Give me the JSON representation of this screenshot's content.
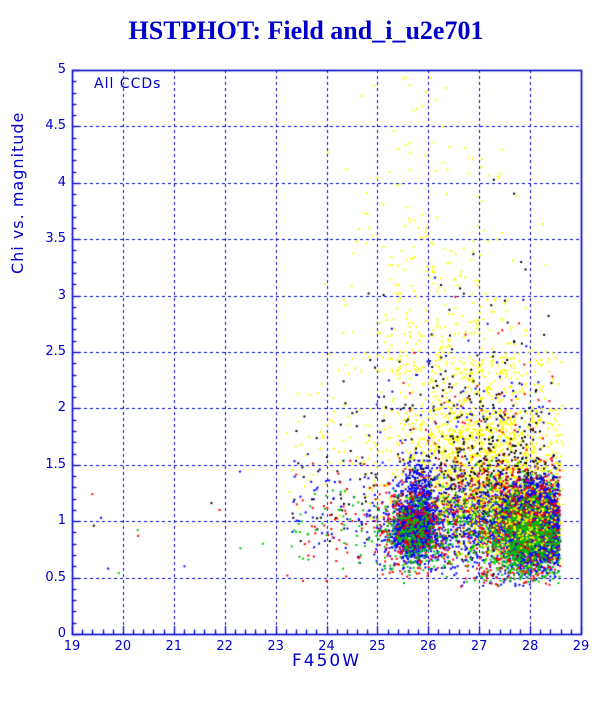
{
  "header": {
    "title": "HSTPHOT: Field and_i_u2e701"
  },
  "colors": {
    "chrome": "#0000cc",
    "background": "#ffffff"
  },
  "chart_data": {
    "type": "scatter",
    "title": "HSTPHOT: Field and_i_u2e701",
    "annotation": "All CCDs",
    "xlabel": "F450W",
    "ylabel": "Chi vs. magnitude",
    "xlim": [
      19,
      29
    ],
    "ylim": [
      0,
      5
    ],
    "x_tick_values": [
      19,
      20,
      21,
      22,
      23,
      24,
      25,
      26,
      27,
      28,
      29
    ],
    "x_tick_labels": [
      "19",
      "20",
      "21",
      "22",
      "23",
      "24",
      "25",
      "26",
      "27",
      "28",
      "29"
    ],
    "y_tick_values": [
      0,
      0.5,
      1,
      1.5,
      2,
      2.5,
      3,
      3.5,
      4,
      4.5,
      5
    ],
    "y_tick_labels": [
      "0",
      "0.5",
      "1",
      "1.5",
      "2",
      "2.5",
      "3",
      "3.5",
      "4",
      "4.5",
      "5"
    ],
    "x_minor_step": 0.2,
    "y_minor_step": 0.1,
    "grid": {
      "style": "dashed",
      "x_every": 1,
      "y_every": 0.5,
      "color": "#0000cc"
    },
    "frame_color": "#0000cc",
    "legend": "none",
    "point_size": 2,
    "seed": 42,
    "point_colors": {
      "blue": "#0000ff",
      "green": "#00c800",
      "red": "#ff0000",
      "yellow": "#ffff00",
      "black": "#000000"
    },
    "clusters": [
      {
        "name": "yellow-band-gauss",
        "color": "yellow",
        "n": 1400,
        "x": {
          "type": "gauss",
          "mu": 27.05,
          "sigma": 0.95,
          "min": 23.2,
          "max": 28.65
        },
        "y": {
          "type": "gauss",
          "mu": 1.5,
          "sigma": 0.42,
          "min": 0.95,
          "max": 2.6
        }
      },
      {
        "name": "yellow-band-uniform",
        "color": "yellow",
        "n": 160,
        "x": {
          "type": "uniform",
          "min": 23.2,
          "max": 28.65
        },
        "y": {
          "type": "gauss",
          "mu": 1.7,
          "sigma": 0.45,
          "min": 1.0,
          "max": 2.9
        }
      },
      {
        "name": "yellow-mid-plume",
        "color": "yellow",
        "n": 230,
        "x": {
          "type": "gauss",
          "mu": 26.4,
          "sigma": 0.95,
          "min": 23.5,
          "max": 28.6
        },
        "y": {
          "type": "expdecay",
          "min": 2.3,
          "scale": 0.45,
          "max": 3.6
        }
      },
      {
        "name": "yellow-upper-plume",
        "color": "yellow",
        "n": 80,
        "x": {
          "type": "gauss",
          "mu": 25.95,
          "sigma": 0.8,
          "min": 23.8,
          "max": 28.4
        },
        "y": {
          "type": "uniform",
          "min": 3.0,
          "max": 4.45
        }
      },
      {
        "name": "yellow-top",
        "color": "yellow",
        "n": 10,
        "x": {
          "type": "gauss",
          "mu": 25.7,
          "sigma": 0.55,
          "min": 24.4,
          "max": 27.0
        },
        "y": {
          "type": "uniform",
          "min": 4.45,
          "max": 4.95
        }
      },
      {
        "name": "black-band-gauss",
        "color": "black",
        "n": 420,
        "x": {
          "type": "gauss",
          "mu": 27.35,
          "sigma": 0.85,
          "min": 24.0,
          "max": 28.6
        },
        "y": {
          "type": "gauss",
          "mu": 1.25,
          "sigma": 0.33,
          "min": 0.6,
          "max": 2.3
        }
      },
      {
        "name": "black-band-uniform",
        "color": "black",
        "n": 130,
        "x": {
          "type": "uniform",
          "min": 23.3,
          "max": 28.6
        },
        "y": {
          "type": "gauss",
          "mu": 1.3,
          "sigma": 0.35,
          "min": 0.65,
          "max": 2.2
        }
      },
      {
        "name": "black-upper",
        "color": "black",
        "n": 90,
        "x": {
          "type": "gauss",
          "mu": 26.9,
          "sigma": 1.0,
          "min": 24.2,
          "max": 28.6
        },
        "y": {
          "type": "expdecay",
          "min": 1.9,
          "scale": 0.5,
          "max": 4.1
        }
      },
      {
        "name": "black-in-blob",
        "color": "black",
        "n": 160,
        "x": {
          "type": "gauss",
          "mu": 27.95,
          "sigma": 0.5,
          "min": 26.3,
          "max": 28.6
        },
        "y": {
          "type": "gauss",
          "mu": 1.0,
          "sigma": 0.25,
          "min": 0.5,
          "max": 1.7
        }
      },
      {
        "name": "blue-blob-main",
        "color": "blue",
        "n": 5200,
        "x": {
          "type": "gauss",
          "mu": 28.08,
          "sigma": 0.3,
          "min": 26.6,
          "max": 28.58
        },
        "y": {
          "type": "gauss",
          "mu": 0.95,
          "sigma": 0.155,
          "min": 0.5,
          "max": 1.6
        }
      },
      {
        "name": "blue-blob-left",
        "color": "blue",
        "n": 1500,
        "x": {
          "type": "gauss",
          "mu": 25.72,
          "sigma": 0.19,
          "min": 25.05,
          "max": 26.45
        },
        "y": {
          "type": "gauss",
          "mu": 0.92,
          "sigma": 0.115,
          "min": 0.55,
          "max": 1.4
        }
      },
      {
        "name": "blue-blob-left-tail",
        "color": "blue",
        "n": 230,
        "x": {
          "type": "gauss",
          "mu": 25.82,
          "sigma": 0.17,
          "min": 25.2,
          "max": 26.5
        },
        "y": {
          "type": "gauss",
          "mu": 1.28,
          "sigma": 0.17,
          "min": 0.95,
          "max": 1.62
        }
      },
      {
        "name": "blue-band-gauss",
        "color": "blue",
        "n": 800,
        "x": {
          "type": "gauss",
          "mu": 27.1,
          "sigma": 1.0,
          "min": 23.5,
          "max": 28.58
        },
        "y": {
          "type": "gauss",
          "mu": 1.0,
          "sigma": 0.22,
          "min": 0.5,
          "max": 1.7
        }
      },
      {
        "name": "blue-band-uniform",
        "color": "blue",
        "n": 130,
        "x": {
          "type": "uniform",
          "min": 23.3,
          "max": 28.58
        },
        "y": {
          "type": "gauss",
          "mu": 1.0,
          "sigma": 0.25,
          "min": 0.5,
          "max": 1.6
        }
      },
      {
        "name": "blue-upper",
        "color": "blue",
        "n": 55,
        "x": {
          "type": "gauss",
          "mu": 26.9,
          "sigma": 1.0,
          "min": 24.3,
          "max": 28.5
        },
        "y": {
          "type": "expdecay",
          "min": 1.7,
          "scale": 0.5,
          "max": 4.0
        }
      },
      {
        "name": "blue-low",
        "color": "blue",
        "n": 25,
        "x": {
          "type": "gauss",
          "mu": 27.6,
          "sigma": 0.7,
          "min": 25.5,
          "max": 28.55
        },
        "y": {
          "type": "uniform",
          "min": 0.42,
          "max": 0.55
        }
      },
      {
        "name": "red-fringe-main",
        "color": "red",
        "n": 620,
        "x": {
          "type": "gauss",
          "mu": 27.95,
          "sigma": 0.45,
          "min": 26.2,
          "max": 28.6
        },
        "y": {
          "type": "gauss",
          "mu": 0.95,
          "sigma": 0.26,
          "min": 0.45,
          "max": 1.75
        }
      },
      {
        "name": "red-fringe-left",
        "color": "red",
        "n": 240,
        "x": {
          "type": "gauss",
          "mu": 25.72,
          "sigma": 0.3,
          "min": 24.8,
          "max": 26.6
        },
        "y": {
          "type": "gauss",
          "mu": 0.95,
          "sigma": 0.2,
          "min": 0.5,
          "max": 1.6
        }
      },
      {
        "name": "red-band-gauss",
        "color": "red",
        "n": 300,
        "x": {
          "type": "gauss",
          "mu": 27.2,
          "sigma": 0.95,
          "min": 23.9,
          "max": 28.6
        },
        "y": {
          "type": "gauss",
          "mu": 1.05,
          "sigma": 0.3,
          "min": 0.5,
          "max": 1.9
        }
      },
      {
        "name": "red-band-uniform",
        "color": "red",
        "n": 150,
        "x": {
          "type": "uniform",
          "min": 23.2,
          "max": 28.6
        },
        "y": {
          "type": "gauss",
          "mu": 1.0,
          "sigma": 0.3,
          "min": 0.45,
          "max": 1.8
        }
      },
      {
        "name": "red-upper",
        "color": "red",
        "n": 35,
        "x": {
          "type": "gauss",
          "mu": 27.0,
          "sigma": 0.9,
          "min": 24.5,
          "max": 28.5
        },
        "y": {
          "type": "expdecay",
          "min": 1.8,
          "scale": 0.4,
          "max": 3.0
        }
      },
      {
        "name": "red-low",
        "color": "red",
        "n": 20,
        "x": {
          "type": "gauss",
          "mu": 27.4,
          "sigma": 0.8,
          "min": 25.3,
          "max": 28.55
        },
        "y": {
          "type": "uniform",
          "min": 0.42,
          "max": 0.55
        }
      },
      {
        "name": "green-fringe-main",
        "color": "green",
        "n": 680,
        "x": {
          "type": "gauss",
          "mu": 27.97,
          "sigma": 0.42,
          "min": 26.3,
          "max": 28.6
        },
        "y": {
          "type": "gauss",
          "mu": 0.87,
          "sigma": 0.2,
          "min": 0.45,
          "max": 1.45
        }
      },
      {
        "name": "green-fringe-left",
        "color": "green",
        "n": 230,
        "x": {
          "type": "gauss",
          "mu": 25.7,
          "sigma": 0.27,
          "min": 24.9,
          "max": 26.5
        },
        "y": {
          "type": "gauss",
          "mu": 0.88,
          "sigma": 0.16,
          "min": 0.52,
          "max": 1.4
        }
      },
      {
        "name": "green-band-gauss",
        "color": "green",
        "n": 280,
        "x": {
          "type": "gauss",
          "mu": 27.1,
          "sigma": 1.0,
          "min": 23.9,
          "max": 28.6
        },
        "y": {
          "type": "gauss",
          "mu": 0.95,
          "sigma": 0.24,
          "min": 0.5,
          "max": 1.6
        }
      },
      {
        "name": "green-band-uniform",
        "color": "green",
        "n": 110,
        "x": {
          "type": "uniform",
          "min": 23.3,
          "max": 28.6
        },
        "y": {
          "type": "gauss",
          "mu": 0.95,
          "sigma": 0.25,
          "min": 0.5,
          "max": 1.55
        }
      },
      {
        "name": "green-low",
        "color": "green",
        "n": 20,
        "x": {
          "type": "gauss",
          "mu": 27.5,
          "sigma": 0.8,
          "min": 25.4,
          "max": 28.55
        },
        "y": {
          "type": "uniform",
          "min": 0.43,
          "max": 0.56
        }
      },
      {
        "name": "yellow-speckle-on-blob",
        "color": "yellow",
        "n": 380,
        "x": {
          "type": "gauss",
          "mu": 27.7,
          "sigma": 0.75,
          "min": 25.2,
          "max": 28.62
        },
        "y": {
          "type": "gauss",
          "mu": 1.0,
          "sigma": 0.22,
          "min": 0.6,
          "max": 1.5
        }
      }
    ],
    "outlier_points": [
      {
        "x": 19.4,
        "y": 1.24,
        "color": "red"
      },
      {
        "x": 19.57,
        "y": 1.03,
        "color": "blue"
      },
      {
        "x": 19.43,
        "y": 0.96,
        "color": "black"
      },
      {
        "x": 19.71,
        "y": 0.58,
        "color": "blue"
      },
      {
        "x": 19.92,
        "y": 0.54,
        "color": "green"
      },
      {
        "x": 20.29,
        "y": 0.92,
        "color": "green"
      },
      {
        "x": 20.3,
        "y": 0.87,
        "color": "red"
      },
      {
        "x": 21.21,
        "y": 0.6,
        "color": "blue"
      },
      {
        "x": 21.74,
        "y": 1.16,
        "color": "black"
      },
      {
        "x": 21.9,
        "y": 1.1,
        "color": "red"
      },
      {
        "x": 22.3,
        "y": 1.44,
        "color": "blue"
      },
      {
        "x": 22.31,
        "y": 0.76,
        "color": "green"
      },
      {
        "x": 22.75,
        "y": 0.8,
        "color": "green"
      },
      {
        "x": 23.54,
        "y": 0.47,
        "color": "red"
      },
      {
        "x": 24.7,
        "y": 4.77,
        "color": "yellow"
      },
      {
        "x": 24.93,
        "y": 4.86,
        "color": "yellow"
      },
      {
        "x": 25.95,
        "y": 4.81,
        "color": "yellow"
      },
      {
        "x": 26.05,
        "y": 4.93,
        "color": "yellow"
      },
      {
        "x": 24.4,
        "y": 4.12,
        "color": "yellow"
      },
      {
        "x": 25.0,
        "y": 4.04,
        "color": "yellow"
      },
      {
        "x": 27.39,
        "y": 4.04,
        "color": "yellow"
      },
      {
        "x": 27.66,
        "y": 3.31,
        "color": "yellow"
      },
      {
        "x": 27.25,
        "y": 2.86,
        "color": "yellow"
      },
      {
        "x": 27.27,
        "y": 2.46,
        "color": "black"
      },
      {
        "x": 28.13,
        "y": 2.42,
        "color": "yellow"
      }
    ]
  }
}
